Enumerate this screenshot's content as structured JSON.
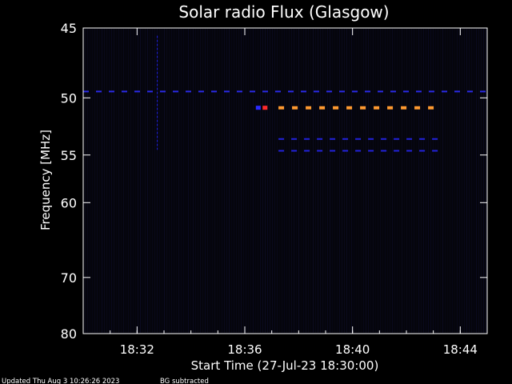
{
  "chart_data": {
    "type": "heatmap",
    "title": "Solar radio Flux (Glasgow)",
    "xlabel": "Start Time (27-Jul-23 18:30:00)",
    "ylabel": "Frequency [MHz]",
    "x_unit": "time",
    "x_range": [
      "18:30:00",
      "18:45:00"
    ],
    "x_ticks": [
      "18:32",
      "18:36",
      "18:40",
      "18:44"
    ],
    "ylim": [
      80,
      45
    ],
    "y_ticks": [
      45,
      50,
      55,
      60,
      70,
      80
    ],
    "grid": false,
    "features": [
      {
        "kind": "hband",
        "freq": 49.5,
        "t_start": "18:30:00",
        "t_end": "18:45:00",
        "intensity": "low",
        "pattern": "dashed",
        "color": "#2a2ae6"
      },
      {
        "kind": "vline",
        "time": "18:32:45",
        "f_start": 45.5,
        "f_end": 54.5,
        "intensity": "low",
        "color": "#1c1cc8"
      },
      {
        "kind": "hband",
        "freq": 50.8,
        "t_start": "18:37:15",
        "t_end": "18:43:15",
        "intensity": "high",
        "pattern": "dashed",
        "color": "#ff9a30"
      },
      {
        "kind": "hband",
        "freq": 53.5,
        "t_start": "18:37:15",
        "t_end": "18:43:15",
        "intensity": "low",
        "pattern": "dashed",
        "color": "#2222dd"
      },
      {
        "kind": "hband",
        "freq": 54.6,
        "t_start": "18:37:15",
        "t_end": "18:43:15",
        "intensity": "low",
        "pattern": "dashed",
        "color": "#2222dd"
      },
      {
        "kind": "spot",
        "time": "18:36:45",
        "freq": 50.8,
        "intensity": "very high",
        "color": "#ff2a2a"
      },
      {
        "kind": "spot",
        "time": "18:36:30",
        "freq": 50.8,
        "intensity": "low",
        "color": "#2a2aff"
      }
    ]
  },
  "footer": {
    "updated": "Updated Thu Aug  3 10:26:26 2023",
    "note": "BG subtracted"
  }
}
